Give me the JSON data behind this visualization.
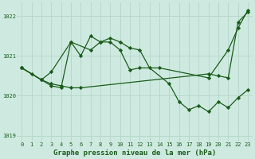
{
  "title": "Graphe pression niveau de la mer (hPa)",
  "background_color": "#ceeae0",
  "grid_color": "#b8d8cc",
  "line_color": "#1a5c1a",
  "marker_color": "#1a5c1a",
  "xlim": [
    -0.5,
    23.5
  ],
  "ylim": [
    1018.85,
    1022.35
  ],
  "yticks": [
    1019,
    1020,
    1021,
    1022
  ],
  "xticks": [
    0,
    1,
    2,
    3,
    4,
    5,
    6,
    7,
    8,
    9,
    10,
    11,
    12,
    13,
    14,
    15,
    16,
    17,
    18,
    19,
    20,
    21,
    22,
    23
  ],
  "line1_x": [
    0,
    1,
    2,
    3,
    5,
    7,
    8,
    9,
    10,
    11,
    12,
    14,
    19,
    21,
    22,
    23
  ],
  "line1_y": [
    1020.7,
    1020.55,
    1020.4,
    1020.6,
    1021.35,
    1021.15,
    1021.35,
    1021.35,
    1021.15,
    1020.65,
    1020.7,
    1020.7,
    1020.45,
    1021.15,
    1021.7,
    1022.15
  ],
  "line2_x": [
    0,
    2,
    3,
    4,
    5,
    6,
    7,
    8,
    9,
    10,
    11,
    12,
    13,
    15,
    16,
    17,
    18,
    19,
    20,
    21,
    22,
    23
  ],
  "line2_y": [
    1020.7,
    1020.4,
    1020.25,
    1020.2,
    1021.35,
    1021.0,
    1021.5,
    1021.35,
    1021.45,
    1021.35,
    1021.2,
    1021.15,
    1020.7,
    1020.3,
    1019.85,
    1019.65,
    1019.75,
    1019.6,
    1019.85,
    1019.7,
    1019.95,
    1020.15
  ],
  "line3_x": [
    0,
    2,
    3,
    4,
    5,
    6,
    19,
    20,
    21,
    22,
    23
  ],
  "line3_y": [
    1020.7,
    1020.4,
    1020.3,
    1020.25,
    1020.2,
    1020.2,
    1020.55,
    1020.5,
    1020.45,
    1021.85,
    1022.1
  ]
}
